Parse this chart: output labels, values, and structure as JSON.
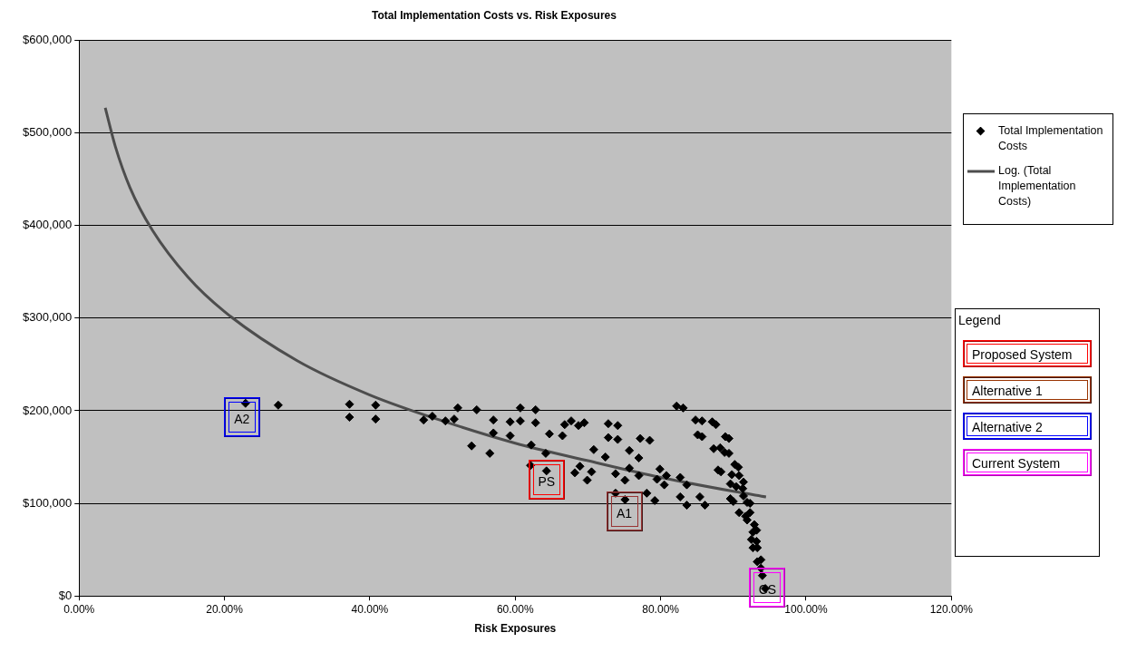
{
  "chart_data": {
    "type": "scatter",
    "title": "Total Implementation Costs vs. Risk Exposures",
    "xlabel": "Risk Exposures",
    "xlim": [
      0,
      120
    ],
    "xticks": [
      {
        "value": 0,
        "label": "0.00%"
      },
      {
        "value": 20,
        "label": "20.00%"
      },
      {
        "value": 40,
        "label": "40.00%"
      },
      {
        "value": 60,
        "label": "60.00%"
      },
      {
        "value": 80,
        "label": "80.00%"
      },
      {
        "value": 100,
        "label": "100.00%"
      },
      {
        "value": 120,
        "label": "120.00%"
      }
    ],
    "ylim": [
      0,
      600000
    ],
    "yticks": [
      {
        "value": 0,
        "label": "$0"
      },
      {
        "value": 100000,
        "label": "$100,000"
      },
      {
        "value": 200000,
        "label": "$200,000"
      },
      {
        "value": 300000,
        "label": "$300,000"
      },
      {
        "value": 400000,
        "label": "$400,000"
      },
      {
        "value": 500000,
        "label": "$500,000"
      },
      {
        "value": 600000,
        "label": "$600,000"
      }
    ],
    "grid": "y",
    "legend": "right",
    "series": [
      {
        "name": "Total Implementation Costs",
        "type": "scatter",
        "color": "#000000",
        "marker": "diamond",
        "x": [
          22.9,
          27.4,
          37.2,
          37.2,
          40.8,
          40.8,
          47.4,
          48.6,
          50.4,
          51.6,
          52.1,
          54.7,
          54.0,
          56.5,
          57.0,
          57.0,
          59.3,
          59.3,
          60.7,
          60.7,
          62.8,
          62.8,
          62.1,
          64.7,
          66.5,
          66.8,
          67.7,
          68.7,
          69.5,
          62.2,
          64.2,
          64.3,
          68.9,
          68.2,
          70.5,
          69.9,
          70.8,
          72.4,
          72.8,
          74.1,
          72.8,
          74.1,
          75.7,
          77.0,
          77.2,
          78.5,
          73.8,
          75.1,
          75.7,
          77.0,
          73.8,
          75.1,
          78.1,
          79.2,
          79.9,
          80.8,
          79.5,
          80.5,
          82.7,
          83.6,
          82.7,
          83.6,
          82.2,
          83.1,
          84.8,
          85.7,
          87.1,
          87.6,
          85.1,
          85.7,
          88.9,
          89.4,
          87.3,
          88.2,
          88.8,
          89.4,
          87.9,
          88.3,
          90.2,
          90.7,
          89.8,
          90.8,
          91.4,
          89.6,
          90.4,
          91.3,
          85.4,
          86.1,
          89.6,
          90.0,
          91.4,
          91.9,
          92.3,
          90.8,
          91.7,
          92.3,
          91.9,
          92.9,
          92.7,
          93.2,
          92.5,
          93.2,
          92.7,
          93.3,
          93.3,
          93.8,
          93.8,
          94.0,
          94.4
        ],
        "values": [
          208000,
          206000,
          207000,
          193000,
          206000,
          191000,
          190000,
          194000,
          189000,
          191000,
          203000,
          201000,
          162000,
          154000,
          190000,
          176000,
          188000,
          173000,
          203000,
          189000,
          201000,
          187000,
          141000,
          175000,
          173000,
          185000,
          189000,
          184000,
          187000,
          163000,
          154000,
          135000,
          140000,
          133000,
          134000,
          125000,
          158000,
          150000,
          186000,
          184000,
          171000,
          169000,
          157000,
          149000,
          170000,
          168000,
          132000,
          125000,
          138000,
          130000,
          111000,
          104000,
          111000,
          103000,
          137000,
          130000,
          126000,
          120000,
          128000,
          120000,
          107000,
          98000,
          205000,
          203000,
          190000,
          189000,
          188000,
          185000,
          174000,
          172000,
          172000,
          170000,
          159000,
          160000,
          155000,
          154000,
          136000,
          134000,
          142000,
          139000,
          131000,
          130000,
          123000,
          121000,
          118000,
          116000,
          107000,
          98000,
          105000,
          102000,
          108000,
          101000,
          100000,
          90000,
          86000,
          90000,
          82000,
          77000,
          69000,
          71000,
          61000,
          59000,
          52000,
          52000,
          37000,
          39000,
          30000,
          22000,
          8000
        ]
      },
      {
        "name": "Log. (Total Implementation Costs)",
        "type": "line",
        "color": "#4d4d4d",
        "marker": "none",
        "x": [
          3.6,
          5,
          7,
          10,
          15,
          20,
          30,
          40,
          50,
          60,
          70,
          80,
          90,
          94.5
        ],
        "values": [
          527000,
          485000,
          441000,
          396000,
          344000,
          307000,
          254000,
          217000,
          189000,
          165000,
          146000,
          128000,
          113000,
          107000
        ]
      }
    ],
    "annotations": [
      {
        "text": "PS",
        "x": 64.3,
        "y": 126000
      },
      {
        "text": "A1",
        "x": 75.0,
        "y": 91000
      },
      {
        "text": "A2",
        "x": 22.4,
        "y": 193000
      },
      {
        "text": "CS",
        "x": 94.7,
        "y": 9000
      },
      "Legend",
      "Proposed System",
      "Alternative 1",
      "Alternative 2",
      "Current System"
    ]
  }
}
